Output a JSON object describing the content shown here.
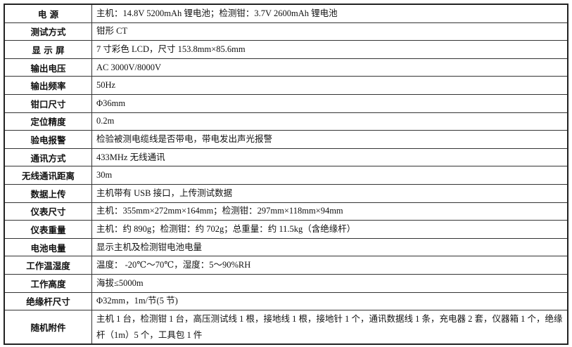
{
  "table": {
    "rows": [
      [
        "电 源",
        "主机：14.8V 5200mAh 锂电池；检测钳：3.7V 2600mAh 锂电池"
      ],
      [
        "测试方式",
        "钳形 CT"
      ],
      [
        "显 示 屏",
        "7 寸彩色 LCD，尺寸 153.8mm×85.6mm"
      ],
      [
        "输出电压",
        "AC  3000V/8000V"
      ],
      [
        "输出频率",
        "50Hz"
      ],
      [
        "钳口尺寸",
        "Φ36mm"
      ],
      [
        "定位精度",
        "0.2m"
      ],
      [
        "验电报警",
        "检验被测电缆线是否带电，带电发出声光报警"
      ],
      [
        "通讯方式",
        "433MHz 无线通讯"
      ],
      [
        "无线通讯距离",
        "30m"
      ],
      [
        "数据上传",
        "主机带有 USB 接口，上传测试数据"
      ],
      [
        "仪表尺寸",
        "主机：355mm×272mm×164mm；检测钳：297mm×118mm×94mm"
      ],
      [
        "仪表重量",
        "主机：约 890g；检测钳：约 702g；总重量：约 11.5kg（含绝缘杆）"
      ],
      [
        "电池电量",
        "显示主机及检测钳电池电量"
      ],
      [
        "工作温湿度",
        "温度： -20℃～70℃，湿度：5～90%RH"
      ],
      [
        "工作高度",
        "海拔≤5000m"
      ],
      [
        "绝缘杆尺寸",
        "Φ32mm，1m/节(5 节)"
      ],
      [
        "随机附件",
        "主机 1 台，检测钳 1 台，高压测试线 1 根，接地线 1 根，接地针 1 个，通讯数据线 1 条，充电器 2 套，仪器箱 1 个，绝缘杆（1m）5 个，工具包 1 件"
      ]
    ]
  }
}
